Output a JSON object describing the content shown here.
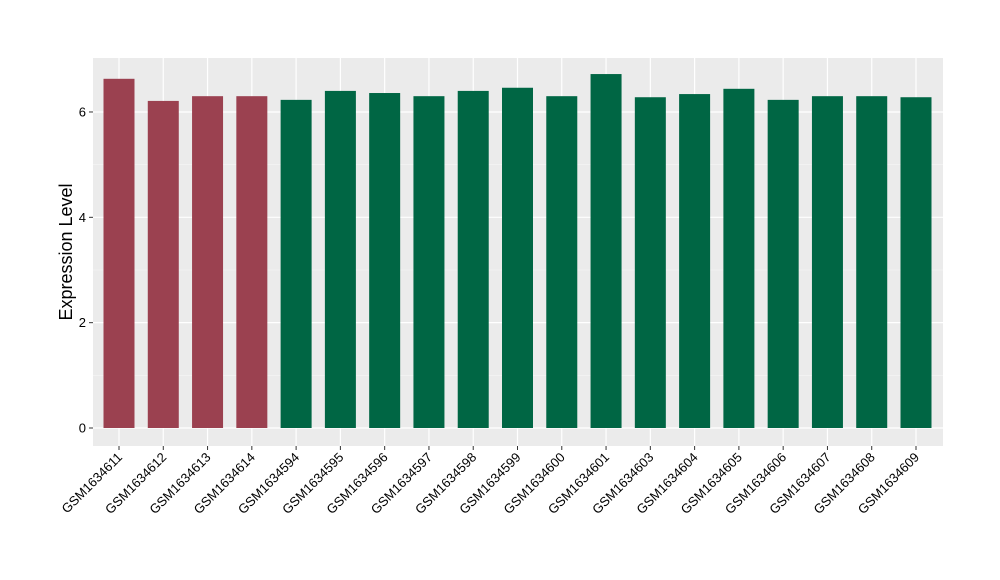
{
  "chart_data": {
    "type": "bar",
    "title": "",
    "xlabel": "",
    "ylabel": "Expression Level",
    "ylim": [
      0,
      7
    ],
    "yticks": [
      0,
      2,
      4,
      6
    ],
    "grid": true,
    "categories": [
      "GSM1634611",
      "GSM1634612",
      "GSM1634613",
      "GSM1634614",
      "GSM1634594",
      "GSM1634595",
      "GSM1634596",
      "GSM1634597",
      "GSM1634598",
      "GSM1634599",
      "GSM1634600",
      "GSM1634601",
      "GSM1634603",
      "GSM1634604",
      "GSM1634605",
      "GSM1634606",
      "GSM1634607",
      "GSM1634608",
      "GSM1634609"
    ],
    "values": [
      6.63,
      6.21,
      6.3,
      6.3,
      6.23,
      6.4,
      6.36,
      6.3,
      6.4,
      6.46,
      6.3,
      6.72,
      6.28,
      6.34,
      6.44,
      6.23,
      6.3,
      6.3,
      6.28
    ],
    "bar_colors": [
      "#9b4150",
      "#9b4150",
      "#9b4150",
      "#9b4150",
      "#006644",
      "#006644",
      "#006644",
      "#006644",
      "#006644",
      "#006644",
      "#006644",
      "#006644",
      "#006644",
      "#006644",
      "#006644",
      "#006644",
      "#006644",
      "#006644",
      "#006644"
    ],
    "panel_background": "#ebebeb"
  }
}
